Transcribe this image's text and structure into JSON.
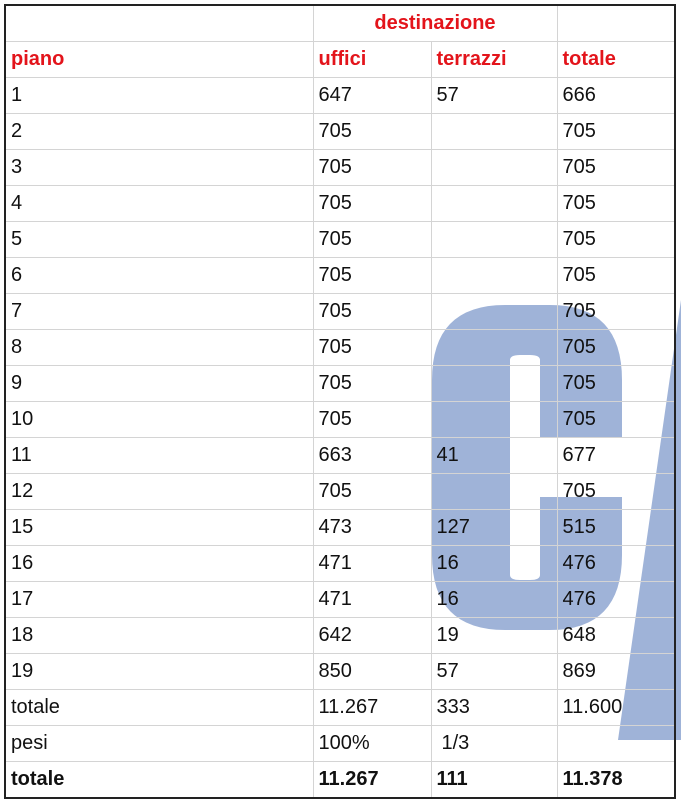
{
  "header": {
    "group": "destinazione",
    "columns": [
      "piano",
      "uffici",
      "terrazzi",
      "totale"
    ]
  },
  "rows": [
    [
      "1",
      "647",
      "57",
      "666"
    ],
    [
      "2",
      "705",
      "",
      "705"
    ],
    [
      "3",
      "705",
      "",
      "705"
    ],
    [
      "4",
      "705",
      "",
      "705"
    ],
    [
      "5",
      "705",
      "",
      "705"
    ],
    [
      "6",
      "705",
      "",
      "705"
    ],
    [
      "7",
      "705",
      "",
      "705"
    ],
    [
      "8",
      "705",
      "",
      "705"
    ],
    [
      "9",
      "705",
      "",
      "705"
    ],
    [
      "10",
      "705",
      "",
      "705"
    ],
    [
      "11",
      "663",
      "41",
      "677"
    ],
    [
      "12",
      "705",
      "",
      "705"
    ],
    [
      "15",
      "473",
      "127",
      "515"
    ],
    [
      "16",
      "471",
      "16",
      "476"
    ],
    [
      "17",
      "471",
      "16",
      "476"
    ],
    [
      "18",
      "642",
      "19",
      "648"
    ],
    [
      "19",
      "850",
      "57",
      "869"
    ]
  ],
  "subtotal": [
    "totale",
    "11.267",
    "333",
    "11.600"
  ],
  "weights": [
    "pesi",
    "100%",
    "1/3",
    ""
  ],
  "total": [
    "totale",
    "11.267",
    "111",
    "11.378"
  ],
  "colors": {
    "header_text": "#e3141b",
    "watermark": "#9aafd6"
  }
}
